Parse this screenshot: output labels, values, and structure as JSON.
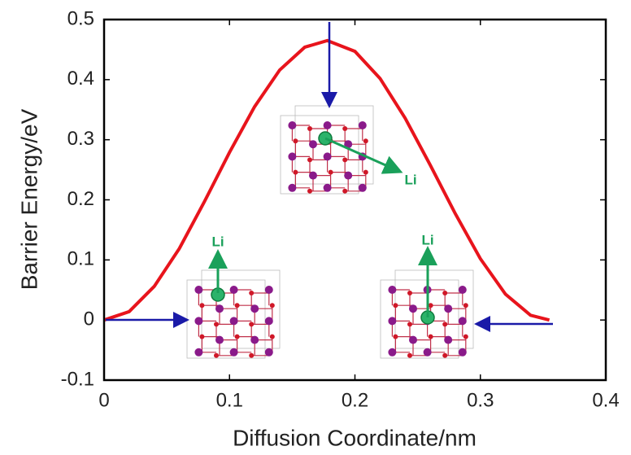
{
  "chart_data": {
    "type": "line",
    "x_label": "Diffusion Coordinate/nm",
    "y_label": "Barrier Energy/eV",
    "x": [
      0,
      0.02,
      0.04,
      0.06,
      0.08,
      0.1,
      0.12,
      0.14,
      0.16,
      0.178,
      0.2,
      0.22,
      0.24,
      0.26,
      0.28,
      0.3,
      0.32,
      0.34,
      0.355
    ],
    "series": [
      {
        "color": "#e8141c",
        "values": [
          0,
          0.014,
          0.056,
          0.119,
          0.197,
          0.279,
          0.355,
          0.416,
          0.454,
          0.465,
          0.447,
          0.402,
          0.336,
          0.258,
          0.177,
          0.102,
          0.043,
          0.008,
          0
        ]
      }
    ],
    "xlim": [
      0,
      0.4
    ],
    "xticks": [
      0,
      0.1,
      0.2,
      0.3,
      0.4
    ],
    "ylim": [
      -0.1,
      0.5
    ],
    "yticks": [
      -0.1,
      0,
      0.1,
      0.2,
      0.3,
      0.4,
      0.5
    ],
    "annotations": [
      "Li",
      "Li",
      "Li"
    ]
  }
}
